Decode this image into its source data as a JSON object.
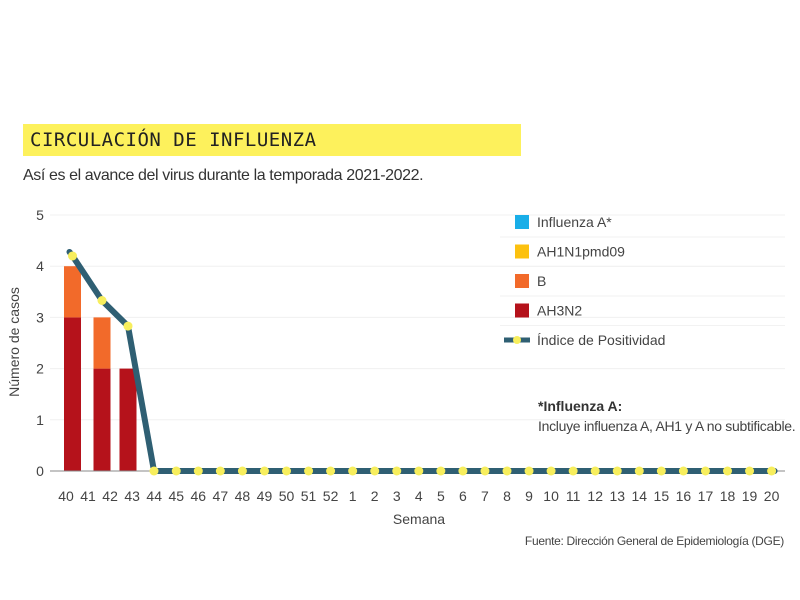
{
  "header": {
    "title": "CIRCULACIÓN DE INFLUENZA",
    "subtitle": "Así es el avance del virus durante la temporada 2021-2022."
  },
  "note": {
    "title": "*Influenza A:",
    "body": "Incluye influenza A, AH1 y A no subtificable."
  },
  "source": "Fuente: Dirección General de Epidemiología (DGE)",
  "chart_data": {
    "type": "bar",
    "title": "CIRCULACIÓN DE INFLUENZA",
    "subtitle": "Así es el avance del virus durante la temporada 2021-2022.",
    "xlabel": "Semana",
    "ylabel": "Número de casos",
    "ylim": [
      0,
      5
    ],
    "yticks": [
      0,
      1,
      2,
      3,
      4,
      5
    ],
    "grid": true,
    "legend_position": "top-right",
    "categories": [
      "40",
      "41",
      "42",
      "43",
      "44",
      "45",
      "46",
      "47",
      "48",
      "49",
      "50",
      "51",
      "52",
      "1",
      "2",
      "3",
      "4",
      "5",
      "6",
      "7",
      "8",
      "9",
      "10",
      "11",
      "12",
      "13",
      "14",
      "15",
      "16",
      "17",
      "18",
      "19",
      "20"
    ],
    "series": [
      {
        "name": "Influenza A*",
        "type": "bar",
        "color": "#19aee8",
        "values": [
          0,
          0,
          0,
          0,
          0,
          0,
          0,
          0,
          0,
          0,
          0,
          0,
          0,
          0,
          0,
          0,
          0,
          0,
          0,
          0,
          0,
          0,
          0,
          0,
          0,
          0,
          0,
          0,
          0,
          0,
          0,
          0,
          0
        ]
      },
      {
        "name": "AH1N1pmd09",
        "type": "bar",
        "color": "#fcc10f",
        "values": [
          0,
          0,
          0,
          0,
          0,
          0,
          0,
          0,
          0,
          0,
          0,
          0,
          0,
          0,
          0,
          0,
          0,
          0,
          0,
          0,
          0,
          0,
          0,
          0,
          0,
          0,
          0,
          0,
          0,
          0,
          0,
          0,
          0
        ]
      },
      {
        "name": "B",
        "type": "bar",
        "color": "#f26a2a",
        "values": [
          1,
          1,
          0,
          0,
          0,
          0,
          0,
          0,
          0,
          0,
          0,
          0,
          0,
          0,
          0,
          0,
          0,
          0,
          0,
          0,
          0,
          0,
          0,
          0,
          0,
          0,
          0,
          0,
          0,
          0,
          0,
          0,
          0
        ]
      },
      {
        "name": "AH3N2",
        "type": "bar",
        "color": "#b5121b",
        "values": [
          3,
          2,
          2,
          0,
          0,
          0,
          0,
          0,
          0,
          0,
          0,
          0,
          0,
          0,
          0,
          0,
          0,
          0,
          0,
          0,
          0,
          0,
          0,
          0,
          0,
          0,
          0,
          0,
          0,
          0,
          0,
          0,
          0
        ]
      },
      {
        "name": "Índice de Positividad",
        "type": "line",
        "color": "#2f5f73",
        "marker_color": "#f7ee5d",
        "values": [
          4.2,
          3.33,
          2.83,
          null,
          0,
          0,
          0,
          0,
          0,
          0,
          0,
          0,
          0,
          0,
          0,
          0,
          0,
          0,
          0,
          0,
          0,
          0,
          0,
          0,
          0,
          0,
          0,
          0,
          0,
          0,
          0,
          0,
          0
        ]
      }
    ]
  }
}
